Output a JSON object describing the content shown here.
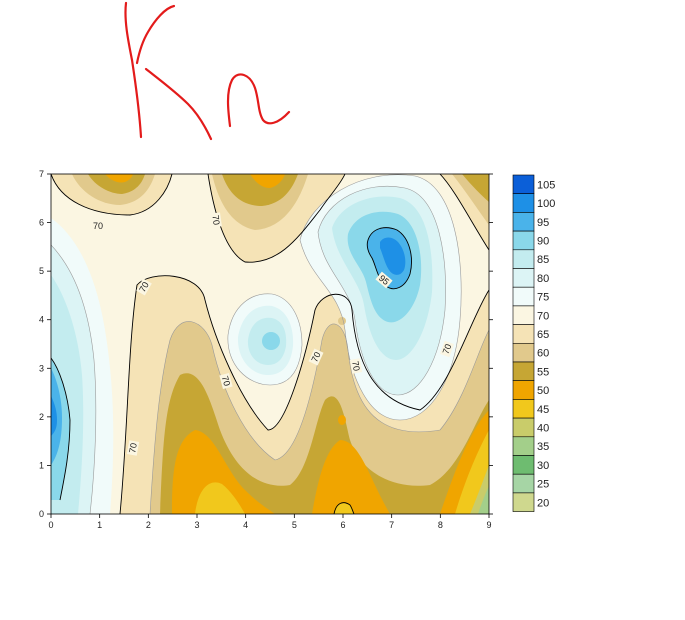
{
  "chart_data": {
    "type": "heatmap",
    "subtype": "filled-contour",
    "title": "",
    "xlabel": "",
    "ylabel": "",
    "xlim": [
      0,
      9
    ],
    "ylim": [
      0,
      7
    ],
    "x_ticks": [
      "0",
      "1",
      "2",
      "3",
      "4",
      "5",
      "6",
      "7",
      "8",
      "9"
    ],
    "y_ticks": [
      "0",
      "1",
      "2",
      "3",
      "4",
      "5",
      "6",
      "7"
    ],
    "grid": false,
    "legend": {
      "placement": "right",
      "levels": [
        "105",
        "100",
        "95",
        "90",
        "85",
        "80",
        "75",
        "70",
        "65",
        "60",
        "55",
        "50",
        "45",
        "40",
        "35",
        "30",
        "25",
        "20"
      ],
      "colors": [
        "#0b5fd8",
        "#1e90e6",
        "#4ab3ea",
        "#8ad8ea",
        "#c3ecef",
        "#dcf4f5",
        "#f1fbfa",
        "#fbf6e2",
        "#f5e3b6",
        "#e1c98c",
        "#c6a634",
        "#f0a500",
        "#f1c81c",
        "#c9cc6a",
        "#a3cf8a",
        "#6ebc70",
        "#a6d5a5",
        "#cfd88e"
      ],
      "colors_note": "bands ordered from highest (105) to lowest (20)"
    },
    "contour_labels": [
      "70",
      "70",
      "70",
      "70",
      "70",
      "70",
      "70",
      "70",
      "95"
    ],
    "features": [
      {
        "kind": "high",
        "x": 7.1,
        "y": 5.3,
        "peak": 105
      },
      {
        "kind": "high",
        "x": 4.5,
        "y": 3.6,
        "peak": 90
      },
      {
        "kind": "high",
        "x": 0.0,
        "y": 2.1,
        "peak": 100
      },
      {
        "kind": "low",
        "x": 3.3,
        "y": 0.3,
        "trough": 45
      },
      {
        "kind": "low",
        "x": 6.2,
        "y": 0.2,
        "trough": 45
      },
      {
        "kind": "low",
        "x": 4.5,
        "y": 6.9,
        "trough": 55
      },
      {
        "kind": "low",
        "x": 1.3,
        "y": 6.9,
        "trough": 55
      },
      {
        "kind": "low",
        "x": 9.0,
        "y": 0.3,
        "trough": 30
      }
    ]
  },
  "annotation": {
    "handwriting_text": "Kn",
    "stroke_color": "#e31b1b"
  },
  "colors": {
    "axis": "#000000",
    "contour_line": "#8a8a8a",
    "contour_line_major": "#000000"
  }
}
